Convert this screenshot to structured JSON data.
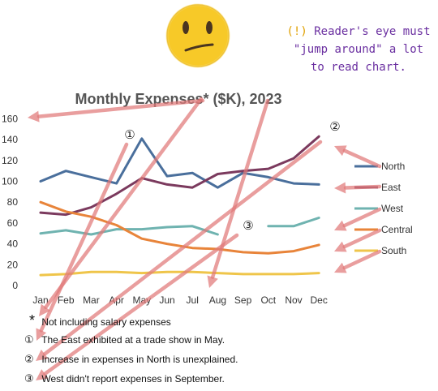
{
  "callout": {
    "bang": "(!)",
    "text_lines": [
      "Reader's eye must",
      "\"jump around\" a lot",
      "to read chart."
    ]
  },
  "emoji": "confused-face",
  "chart_data": {
    "type": "line",
    "title": "Monthly Expenses* ($K), 2023",
    "categories": [
      "Jan",
      "Feb",
      "Mar",
      "Apr",
      "May",
      "Jun",
      "Jul",
      "Aug",
      "Sep",
      "Oct",
      "Nov",
      "Dec"
    ],
    "ylim": [
      0,
      160
    ],
    "yticks": [
      0,
      20,
      40,
      60,
      80,
      100,
      120,
      140,
      160
    ],
    "grid": false,
    "legend_position": "right",
    "series": [
      {
        "name": "North",
        "color": "#4a6f9c",
        "values": [
          100,
          110,
          104,
          98,
          141,
          105,
          108,
          94,
          108,
          104,
          98,
          97
        ]
      },
      {
        "name": "East",
        "color": "#7b3a5e",
        "values": [
          70,
          68,
          75,
          88,
          103,
          97,
          94,
          107,
          110,
          112,
          122,
          143
        ]
      },
      {
        "name": "West",
        "color": "#6fb3b0",
        "values": [
          50,
          53,
          49,
          54,
          54,
          56,
          57,
          49,
          null,
          57,
          57,
          65
        ]
      },
      {
        "name": "Central",
        "color": "#e8843a",
        "values": [
          80,
          71,
          66,
          58,
          45,
          40,
          36,
          35,
          32,
          31,
          33,
          39
        ]
      },
      {
        "name": "South",
        "color": "#efc54a",
        "values": [
          10,
          11,
          13,
          13,
          12,
          13,
          13,
          12,
          11,
          11,
          11,
          12
        ]
      }
    ],
    "markers": [
      "①",
      "②",
      "③"
    ]
  },
  "notes": [
    {
      "sym": "*",
      "text": "Not including salary expenses"
    },
    {
      "sym": "①",
      "text": "The East exhibited at a trade show in May."
    },
    {
      "sym": "②",
      "text": "Increase in expenses in North is unexplained."
    },
    {
      "sym": "③",
      "text": "West didn't report expenses in September."
    }
  ]
}
